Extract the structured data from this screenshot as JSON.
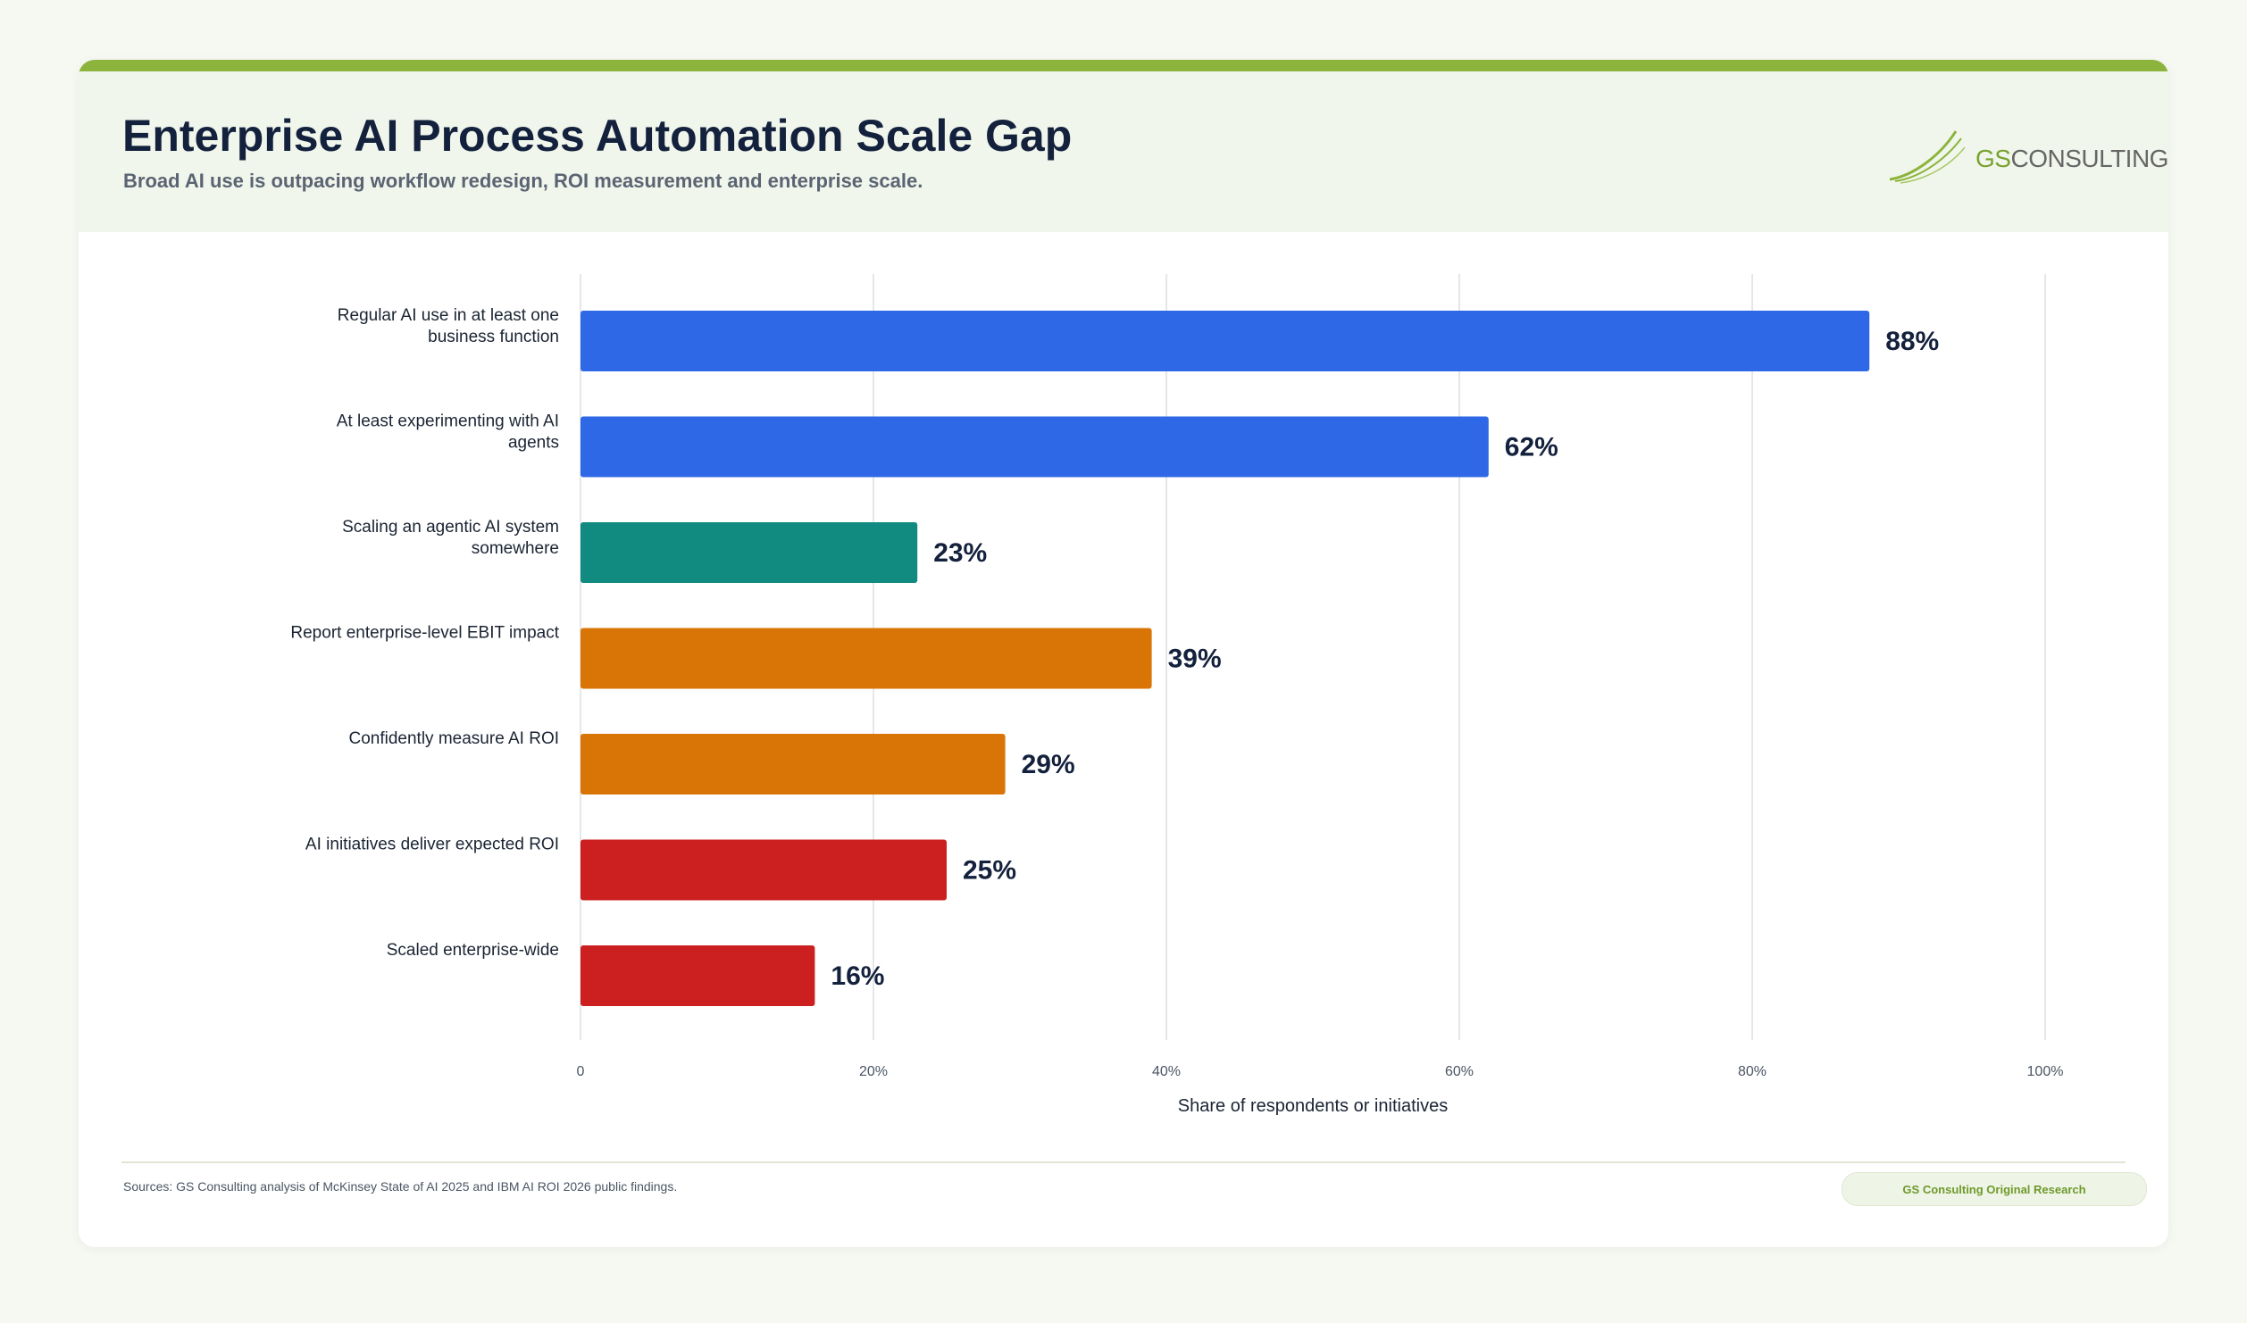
{
  "header": {
    "title": "Enterprise AI Process Automation Scale Gap",
    "subtitle": "Broad AI use is outpacing workflow redesign, ROI measurement and enterprise scale."
  },
  "logo": {
    "prefix": "GS",
    "suffix": "CONSULTING"
  },
  "footer": {
    "source": "Sources: GS Consulting analysis of McKinsey State of AI 2025 and IBM AI ROI 2026 public findings.",
    "badge": "GS Consulting Original Research"
  },
  "chart_data": {
    "type": "bar",
    "orientation": "horizontal",
    "categories": [
      [
        "Regular AI use in at least one",
        "business function"
      ],
      [
        "At least experimenting with AI",
        "agents"
      ],
      [
        "Scaling an agentic AI system",
        "somewhere"
      ],
      [
        "Report enterprise-level EBIT impact"
      ],
      [
        "Confidently measure AI ROI"
      ],
      [
        "AI initiatives deliver expected ROI"
      ],
      [
        "Scaled enterprise-wide"
      ]
    ],
    "values": [
      88,
      62,
      23,
      39,
      29,
      25,
      16
    ],
    "value_labels": [
      "88%",
      "62%",
      "23%",
      "39%",
      "29%",
      "25%",
      "16%"
    ],
    "colors": [
      "#2f68e6",
      "#2f68e6",
      "#118a80",
      "#d97506",
      "#d97506",
      "#cc1f1f",
      "#cc1f1f"
    ],
    "xlabel": "Share of respondents or initiatives",
    "xlim": [
      0,
      100
    ],
    "xticks": [
      0,
      20,
      40,
      60,
      80,
      100
    ],
    "xtick_labels": [
      "0",
      "20%",
      "40%",
      "60%",
      "80%",
      "100%"
    ],
    "grid": "vertical",
    "legend": "none"
  }
}
